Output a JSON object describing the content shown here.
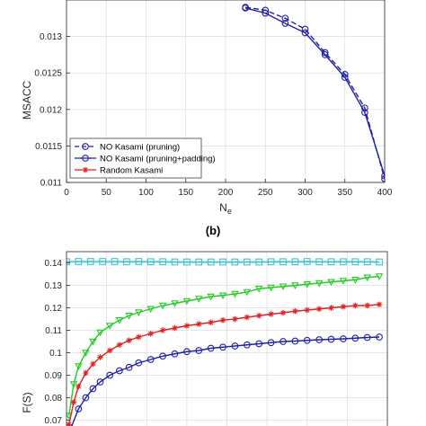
{
  "chart_data": [
    {
      "type": "line",
      "panel": "top",
      "ylabel": "MSACC",
      "xlabel_main": "N",
      "xlabel_sub": "e",
      "xlim": [
        0,
        400
      ],
      "ylim": [
        0.011,
        0.0135
      ],
      "xticks": [
        0,
        50,
        100,
        150,
        200,
        250,
        300,
        350,
        400
      ],
      "yticks": [
        0.011,
        0.0115,
        0.012,
        0.0125,
        0.013
      ],
      "ytick_labels": [
        "0.011",
        "0.0115",
        "0.012",
        "0.0125",
        "0.013"
      ],
      "grid": true,
      "legend_position": "bottom-left",
      "series": [
        {
          "name": "NO Kasami (pruning)",
          "color": "#1f1fa8",
          "line": "dashed",
          "marker": "circle",
          "x": [
            225,
            250,
            275,
            300,
            325,
            350,
            375,
            400
          ],
          "y": [
            0.0134,
            0.01336,
            0.01325,
            0.0131,
            0.01278,
            0.01248,
            0.01202,
            0.01105
          ]
        },
        {
          "name": "NO Kasami (pruning+padding)",
          "color": "#1f1fa8",
          "line": "solid",
          "marker": "circle",
          "x": [
            225,
            250,
            275,
            300,
            325,
            350,
            375,
            400
          ],
          "y": [
            0.01339,
            0.01332,
            0.01318,
            0.01305,
            0.01275,
            0.01244,
            0.01196,
            0.01109
          ]
        },
        {
          "name": "Random Kasami",
          "color": "#e02020",
          "line": "solid",
          "marker": "star",
          "x": [],
          "y": []
        }
      ]
    },
    {
      "type": "line",
      "panel": "bottom",
      "ylabel": "F(S)",
      "xlim": [
        0,
        400
      ],
      "ylim": [
        0.065,
        0.145
      ],
      "yticks": [
        0.07,
        0.08,
        0.09,
        0.1,
        0.11,
        0.12,
        0.13,
        0.14
      ],
      "ytick_labels": [
        "0.07",
        "0.08",
        "0.09",
        "0.1",
        "0.11",
        "0.12",
        "0.13",
        "0.14"
      ],
      "grid": true,
      "series": [
        {
          "color": "#33c6d6",
          "marker": "square",
          "x": [
            0,
            15,
            30,
            45,
            60,
            75,
            90,
            105,
            120,
            135,
            150,
            165,
            180,
            195,
            210,
            225,
            240,
            255,
            270,
            285,
            300,
            315,
            330,
            345,
            360,
            375,
            390
          ],
          "y": [
            0.1405,
            0.1406,
            0.1406,
            0.1406,
            0.1406,
            0.1405,
            0.1406,
            0.1405,
            0.1405,
            0.1404,
            0.1404,
            0.1404,
            0.1404,
            0.1404,
            0.1404,
            0.1404,
            0.1404,
            0.1405,
            0.1405,
            0.1405,
            0.1406,
            0.1405,
            0.1405,
            0.1405,
            0.1405,
            0.1405,
            0.1404
          ]
        },
        {
          "color": "#22cc22",
          "marker": "triangle-down",
          "x": [
            3,
            9,
            15,
            24,
            33,
            42,
            54,
            66,
            78,
            90,
            105,
            120,
            135,
            150,
            165,
            180,
            195,
            210,
            225,
            240,
            255,
            270,
            285,
            300,
            315,
            330,
            345,
            360,
            375,
            390
          ],
          "y": [
            0.072,
            0.086,
            0.094,
            0.1,
            0.105,
            0.109,
            0.112,
            0.1145,
            0.1165,
            0.118,
            0.1195,
            0.121,
            0.122,
            0.123,
            0.124,
            0.125,
            0.1255,
            0.1262,
            0.127,
            0.1285,
            0.129,
            0.1295,
            0.13,
            0.1305,
            0.131,
            0.1315,
            0.132,
            0.1325,
            0.1335,
            0.134
          ]
        },
        {
          "color": "#dd2222",
          "marker": "star",
          "x": [
            3,
            9,
            15,
            24,
            33,
            42,
            54,
            66,
            78,
            90,
            105,
            120,
            135,
            150,
            165,
            180,
            195,
            210,
            225,
            240,
            255,
            270,
            285,
            300,
            315,
            330,
            345,
            360,
            375,
            390
          ],
          "y": [
            0.068,
            0.078,
            0.085,
            0.091,
            0.095,
            0.098,
            0.101,
            0.1035,
            0.1055,
            0.107,
            0.1085,
            0.11,
            0.111,
            0.112,
            0.1128,
            0.1135,
            0.1145,
            0.115,
            0.1158,
            0.1165,
            0.1172,
            0.1178,
            0.1185,
            0.119,
            0.1195,
            0.12,
            0.1205,
            0.121,
            0.121,
            0.1215
          ]
        },
        {
          "color": "#1f1fa8",
          "marker": "circle",
          "x": [
            5,
            15,
            24,
            33,
            42,
            54,
            66,
            78,
            90,
            105,
            120,
            135,
            150,
            165,
            180,
            195,
            210,
            225,
            240,
            255,
            270,
            285,
            300,
            315,
            330,
            345,
            360,
            375,
            390
          ],
          "y": [
            0.066,
            0.075,
            0.08,
            0.084,
            0.087,
            0.09,
            0.092,
            0.0935,
            0.0955,
            0.097,
            0.0985,
            0.0995,
            0.1005,
            0.101,
            0.102,
            0.1025,
            0.103,
            0.1035,
            0.104,
            0.1045,
            0.105,
            0.1052,
            0.1055,
            0.1058,
            0.106,
            0.1062,
            0.1065,
            0.1068,
            0.107
          ]
        }
      ]
    }
  ],
  "panel_label": "(b)"
}
